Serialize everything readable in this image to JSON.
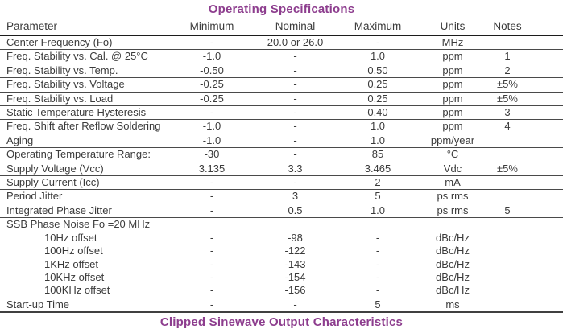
{
  "page": {
    "title": "Operating Specifications",
    "next_section_title": "Clipped Sinewave Output Characteristics",
    "accent_color": "#8d3d8e",
    "text_color": "#3b3b3b"
  },
  "table": {
    "columns": [
      "Parameter",
      "Minimum",
      "Nominal",
      "Maximum",
      "Units",
      "Notes"
    ],
    "rows": [
      {
        "parameter": "Center Frequency (Fo)",
        "minimum": "-",
        "nominal": "20.0 or 26.0",
        "maximum": "-",
        "units": "MHz",
        "notes": "",
        "indent": false,
        "rule": true
      },
      {
        "parameter": "Freq. Stability vs. Cal. @ 25°C",
        "minimum": "-1.0",
        "nominal": "-",
        "maximum": "1.0",
        "units": "ppm",
        "notes": "1",
        "indent": false,
        "rule": true
      },
      {
        "parameter": "Freq. Stability vs. Temp.",
        "minimum": "-0.50",
        "nominal": "-",
        "maximum": "0.50",
        "units": "ppm",
        "notes": "2",
        "indent": false,
        "rule": true
      },
      {
        "parameter": "Freq. Stability vs. Voltage",
        "minimum": "-0.25",
        "nominal": "-",
        "maximum": "0.25",
        "units": "ppm",
        "notes": "±5%",
        "indent": false,
        "rule": true
      },
      {
        "parameter": "Freq. Stability vs. Load",
        "minimum": "-0.25",
        "nominal": "-",
        "maximum": "0.25",
        "units": "ppm",
        "notes": "±5%",
        "indent": false,
        "rule": true
      },
      {
        "parameter": "Static Temperature Hysteresis",
        "minimum": "-",
        "nominal": "-",
        "maximum": "0.40",
        "units": "ppm",
        "notes": "3",
        "indent": false,
        "rule": true
      },
      {
        "parameter": "Freq. Shift after Reflow Soldering",
        "minimum": "-1.0",
        "nominal": "-",
        "maximum": "1.0",
        "units": "ppm",
        "notes": "4",
        "indent": false,
        "rule": true
      },
      {
        "parameter": "Aging",
        "minimum": "-1.0",
        "nominal": "-",
        "maximum": "1.0",
        "units": "ppm/year",
        "notes": "",
        "indent": false,
        "rule": true
      },
      {
        "parameter": "Operating Temperature Range:",
        "minimum": "-30",
        "nominal": "-",
        "maximum": "85",
        "units": "°C",
        "notes": "",
        "indent": false,
        "rule": true
      },
      {
        "parameter": "Supply Voltage (Vcc)",
        "minimum": "3.135",
        "nominal": "3.3",
        "maximum": "3.465",
        "units": "Vdc",
        "notes": "±5%",
        "indent": false,
        "rule": true
      },
      {
        "parameter": "Supply Current (Icc)",
        "minimum": "-",
        "nominal": "-",
        "maximum": "2",
        "units": "mA",
        "notes": "",
        "indent": false,
        "rule": true
      },
      {
        "parameter": "Period Jitter",
        "minimum": "-",
        "nominal": "3",
        "maximum": "5",
        "units": "ps rms",
        "notes": "",
        "indent": false,
        "rule": true
      },
      {
        "parameter": "Integrated Phase Jitter",
        "minimum": "-",
        "nominal": "0.5",
        "maximum": "1.0",
        "units": "ps rms",
        "notes": "5",
        "indent": false,
        "rule": true
      },
      {
        "parameter": "SSB Phase Noise Fo =20 MHz",
        "minimum": "",
        "nominal": "",
        "maximum": "",
        "units": "",
        "notes": "",
        "indent": false,
        "rule": false
      },
      {
        "parameter": "10Hz offset",
        "minimum": "-",
        "nominal": "-98",
        "maximum": "-",
        "units": "dBc/Hz",
        "notes": "",
        "indent": true,
        "rule": false
      },
      {
        "parameter": "100Hz offset",
        "minimum": "-",
        "nominal": "-122",
        "maximum": "-",
        "units": "dBc/Hz",
        "notes": "",
        "indent": true,
        "rule": false
      },
      {
        "parameter": "1KHz offset",
        "minimum": "-",
        "nominal": "-143",
        "maximum": "-",
        "units": "dBc/Hz",
        "notes": "",
        "indent": true,
        "rule": false
      },
      {
        "parameter": "10KHz offset",
        "minimum": "-",
        "nominal": "-154",
        "maximum": "-",
        "units": "dBc/Hz",
        "notes": "",
        "indent": true,
        "rule": false
      },
      {
        "parameter": "100KHz offset",
        "minimum": "-",
        "nominal": "-156",
        "maximum": "-",
        "units": "dBc/Hz",
        "notes": "",
        "indent": true,
        "rule": true
      },
      {
        "parameter": "Start-up Time",
        "minimum": "-",
        "nominal": "-",
        "maximum": "5",
        "units": "ms",
        "notes": "",
        "indent": false,
        "rule": true
      }
    ]
  }
}
